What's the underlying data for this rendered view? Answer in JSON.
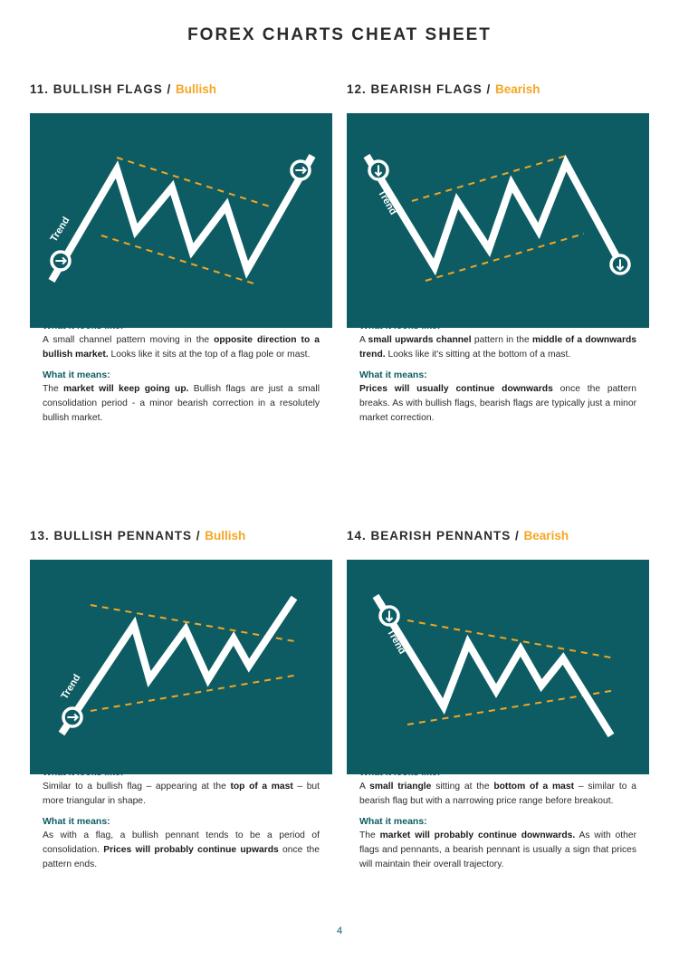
{
  "title": "FOREX CHARTS CHEAT SHEET",
  "colors": {
    "panel": "#0d5c63",
    "accent": "#f5a623",
    "line": "#ffffff"
  },
  "sections": [
    {
      "number": "11. BULLISH FLAGS / ",
      "tag": "Bullish",
      "trend_label": "Trend",
      "looks_label": "What it looks like:",
      "looks": [
        {
          "t": "A small channel pattern moving in the "
        },
        {
          "t": "opposite direction to a bullish market.",
          "b": true
        },
        {
          "t": " Looks like it sits at the top of a flag pole or mast."
        }
      ],
      "means_label": "What it means:",
      "means": [
        {
          "t": "The "
        },
        {
          "t": "market will keep going up.",
          "b": true
        },
        {
          "t": " Bullish flags are just a small consolidation period - a minor bearish correction in a resolutely bullish market."
        }
      ]
    },
    {
      "number": "12. BEARISH FLAGS / ",
      "tag": "Bearish",
      "trend_label": "Trend",
      "looks_label": "What it looks like:",
      "looks": [
        {
          "t": "A "
        },
        {
          "t": "small upwards channel",
          "b": true
        },
        {
          "t": " pattern in the "
        },
        {
          "t": "middle of a downwards trend.",
          "b": true
        },
        {
          "t": " Looks like it's sitting at the bottom of a mast."
        }
      ],
      "means_label": "What it means:",
      "means": [
        {
          "t": "Prices will usually continue downwards",
          "b": true
        },
        {
          "t": " once the pattern breaks. As with bullish flags, bearish flags are typically just a minor market correction."
        }
      ]
    },
    {
      "number": "13. BULLISH PENNANTS / ",
      "tag": "Bullish",
      "trend_label": "Trend",
      "looks_label": "What it looks like:",
      "looks": [
        {
          "t": "Similar to a bullish flag – appearing at the "
        },
        {
          "t": "top of a mast",
          "b": true
        },
        {
          "t": " – but more triangular in shape."
        }
      ],
      "means_label": "What it means:",
      "means": [
        {
          "t": "As with a flag, a bullish pennant tends to be a period of consolidation. "
        },
        {
          "t": "Prices will probably continue upwards",
          "b": true
        },
        {
          "t": " once the pattern ends."
        }
      ]
    },
    {
      "number": "14. BEARISH PENNANTS / ",
      "tag": "Bearish",
      "trend_label": "Trend",
      "looks_label": "What it looks like:",
      "looks": [
        {
          "t": "A "
        },
        {
          "t": "small triangle",
          "b": true
        },
        {
          "t": " sitting at the "
        },
        {
          "t": "bottom of a mast",
          "b": true
        },
        {
          "t": " – similar to a bearish flag but with a narrowing price range before breakout."
        }
      ],
      "means_label": "What it means:",
      "means": [
        {
          "t": "The "
        },
        {
          "t": "market will probably continue downwards.",
          "b": true
        },
        {
          "t": " As with other flags and pennants, a bearish pennant is usually a sign that prices will maintain their overall trajectory."
        }
      ]
    }
  ],
  "page_number": "4"
}
